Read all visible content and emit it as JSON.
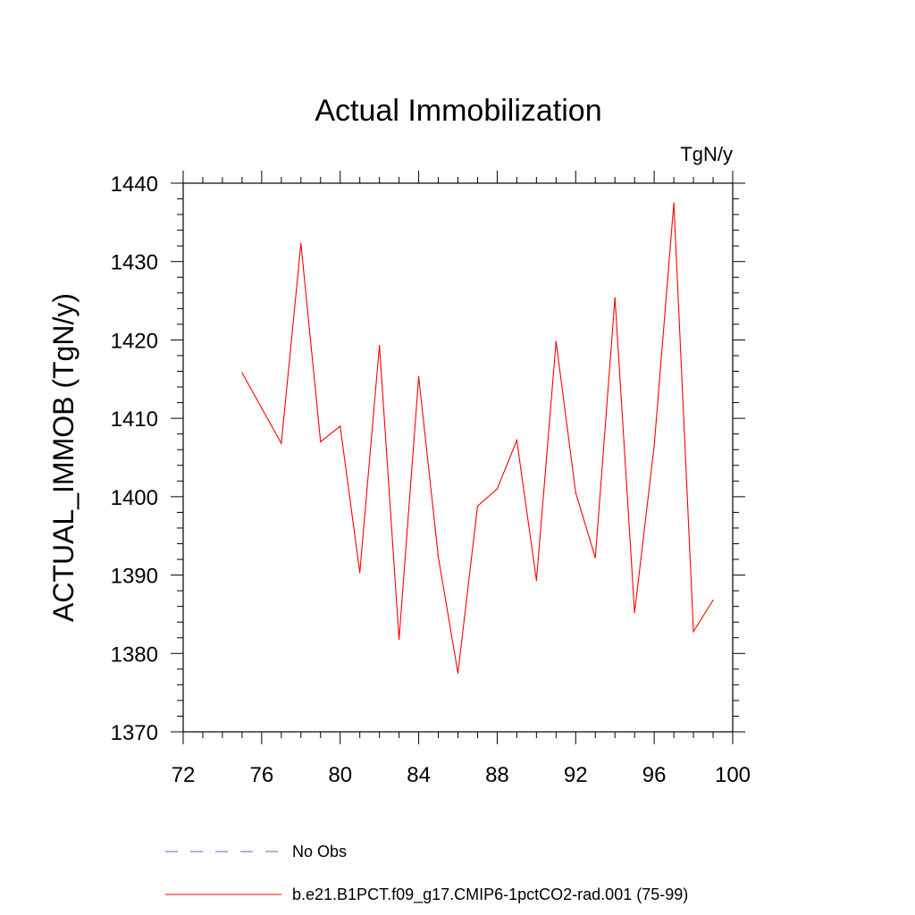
{
  "chart_data": {
    "type": "line",
    "title": "Actual Immobilization",
    "units_label": "TgN/y",
    "ylabel": "ACTUAL_IMMOB  (TgN/y)",
    "xlabel": "",
    "xlim": [
      72,
      100
    ],
    "ylim": [
      1370,
      1440
    ],
    "x_ticks": [
      72,
      76,
      80,
      84,
      88,
      92,
      96,
      100
    ],
    "y_ticks": [
      1370,
      1380,
      1390,
      1400,
      1410,
      1420,
      1430,
      1440
    ],
    "x_tick_labels": [
      "72",
      "76",
      "80",
      "84",
      "88",
      "92",
      "96",
      "100"
    ],
    "y_tick_labels": [
      "1370",
      "1380",
      "1390",
      "1400",
      "1410",
      "1420",
      "1430",
      "1440"
    ],
    "grid": false,
    "legend_position": "bottom",
    "series": [
      {
        "name": "b.e21.B1PCT.f09_g17.CMIP6-1pctCO2-rad.001 (75-99)",
        "color": "#ff0000",
        "style": "solid",
        "x": [
          75,
          76,
          77,
          78,
          79,
          80,
          81,
          82,
          83,
          84,
          85,
          86,
          87,
          88,
          89,
          90,
          91,
          92,
          93,
          94,
          95,
          96,
          97,
          98,
          99
        ],
        "y": [
          1415.8,
          1411.3,
          1406.8,
          1432.3,
          1407.0,
          1409.0,
          1390.3,
          1419.3,
          1381.8,
          1415.3,
          1392.3,
          1377.5,
          1398.8,
          1401.0,
          1407.2,
          1389.3,
          1419.8,
          1400.5,
          1392.2,
          1425.4,
          1385.2,
          1406.5,
          1437.5,
          1382.8,
          1386.8
        ]
      }
    ],
    "legend": [
      {
        "label": "No Obs",
        "color": "#6a5acd",
        "style": "dashed"
      },
      {
        "label": "b.e21.B1PCT.f09_g17.CMIP6-1pctCO2-rad.001 (75-99)",
        "color": "#ff0000",
        "style": "solid"
      }
    ]
  }
}
